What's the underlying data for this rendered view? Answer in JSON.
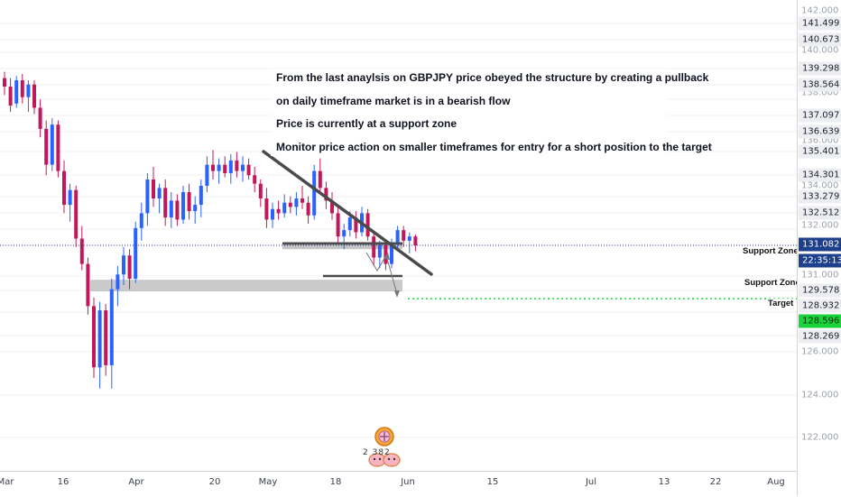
{
  "symbol": "GBPJPY",
  "timeframe": "daily",
  "colors": {
    "bull": "#2962ff",
    "bear": "#c2185b",
    "current_price_line": "#1e3f8a",
    "target_line": "#19d33b",
    "zone_fill": "#9e9e9e",
    "trendline": "#4a4a4a"
  },
  "annotation": {
    "lines": [
      "From the last anaylsis on GBPJPY price obeyed the structure by creating a pullback",
      "on daily timeframe market is in a bearish flow",
      "Price is currently at a support zone",
      "Monitor price action on smaller timeframes for entry for a short position to the target"
    ]
  },
  "zone_labels": {
    "support_1": "Support  Zone",
    "support_2": "Support Zone",
    "target": "Target"
  },
  "price_axis": {
    "ticks": [
      "142.000",
      "140.000",
      "138.000",
      "136.000",
      "134.000",
      "132.000",
      "131.000",
      "126.000",
      "124.000",
      "122.000"
    ],
    "labels": [
      {
        "text": "141.499",
        "kind": "normal"
      },
      {
        "text": "140.673",
        "kind": "normal"
      },
      {
        "text": "139.298",
        "kind": "normal"
      },
      {
        "text": "138.564",
        "kind": "normal"
      },
      {
        "text": "137.097",
        "kind": "normal"
      },
      {
        "text": "136.639",
        "kind": "normal"
      },
      {
        "text": "135.401",
        "kind": "normal"
      },
      {
        "text": "134.301",
        "kind": "normal"
      },
      {
        "text": "133.279",
        "kind": "normal"
      },
      {
        "text": "132.512",
        "kind": "normal"
      },
      {
        "text": "131.082",
        "kind": "current"
      },
      {
        "text": "22:35:13",
        "kind": "timer"
      },
      {
        "text": "129.578",
        "kind": "normal"
      },
      {
        "text": "128.932",
        "kind": "normal"
      },
      {
        "text": "128.596",
        "kind": "green"
      },
      {
        "text": "128.269",
        "kind": "normal"
      }
    ]
  },
  "time_axis": {
    "labels": [
      "Mar",
      "16",
      "Apr",
      "20",
      "May",
      "18",
      "Jun",
      "15",
      "Jul",
      "13",
      "22",
      "Aug"
    ]
  },
  "mascot": {
    "number": "2 382"
  },
  "chart_data": {
    "type": "candlestick",
    "symbol": "GBPJPY",
    "interval": "1D",
    "current_price": 131.082,
    "countdown": "22:35:13",
    "target_price": 128.596,
    "support_zone_1": [
      130.9,
      131.25
    ],
    "support_zone_2": 130.3,
    "target_zone": [
      128.9,
      129.45
    ],
    "candles": [
      {
        "o": 139.0,
        "h": 139.3,
        "l": 138.2,
        "c": 138.6
      },
      {
        "o": 138.6,
        "h": 139.0,
        "l": 137.4,
        "c": 137.7
      },
      {
        "o": 137.8,
        "h": 139.1,
        "l": 137.6,
        "c": 138.9
      },
      {
        "o": 138.9,
        "h": 139.2,
        "l": 137.8,
        "c": 138.1
      },
      {
        "o": 138.1,
        "h": 138.9,
        "l": 137.4,
        "c": 138.7
      },
      {
        "o": 138.7,
        "h": 138.9,
        "l": 137.3,
        "c": 137.6
      },
      {
        "o": 137.6,
        "h": 138.0,
        "l": 136.2,
        "c": 136.6
      },
      {
        "o": 136.6,
        "h": 137.0,
        "l": 134.4,
        "c": 134.9
      },
      {
        "o": 134.9,
        "h": 137.1,
        "l": 134.6,
        "c": 136.8
      },
      {
        "o": 136.8,
        "h": 137.0,
        "l": 134.3,
        "c": 134.6
      },
      {
        "o": 134.6,
        "h": 135.1,
        "l": 132.6,
        "c": 133.0
      },
      {
        "o": 133.0,
        "h": 134.0,
        "l": 132.2,
        "c": 133.7
      },
      {
        "o": 133.7,
        "h": 133.9,
        "l": 131.0,
        "c": 131.4
      },
      {
        "o": 131.4,
        "h": 132.0,
        "l": 129.9,
        "c": 130.2
      },
      {
        "o": 130.2,
        "h": 130.5,
        "l": 127.8,
        "c": 128.2
      },
      {
        "o": 128.2,
        "h": 128.6,
        "l": 124.8,
        "c": 125.3
      },
      {
        "o": 125.3,
        "h": 128.4,
        "l": 124.3,
        "c": 128.0
      },
      {
        "o": 128.0,
        "h": 128.3,
        "l": 124.9,
        "c": 125.4
      },
      {
        "o": 125.4,
        "h": 129.5,
        "l": 124.3,
        "c": 129.0
      },
      {
        "o": 129.0,
        "h": 130.1,
        "l": 128.2,
        "c": 129.7
      },
      {
        "o": 129.7,
        "h": 131.0,
        "l": 129.2,
        "c": 130.6
      },
      {
        "o": 130.6,
        "h": 130.9,
        "l": 129.0,
        "c": 129.5
      },
      {
        "o": 129.5,
        "h": 132.2,
        "l": 129.3,
        "c": 131.9
      },
      {
        "o": 131.9,
        "h": 133.1,
        "l": 131.3,
        "c": 132.6
      },
      {
        "o": 132.6,
        "h": 134.5,
        "l": 132.0,
        "c": 134.2
      },
      {
        "o": 134.2,
        "h": 134.8,
        "l": 132.9,
        "c": 133.3
      },
      {
        "o": 133.3,
        "h": 134.0,
        "l": 132.6,
        "c": 133.8
      },
      {
        "o": 133.8,
        "h": 134.2,
        "l": 132.0,
        "c": 132.4
      },
      {
        "o": 132.4,
        "h": 133.6,
        "l": 131.9,
        "c": 133.2
      },
      {
        "o": 133.2,
        "h": 133.5,
        "l": 132.0,
        "c": 132.3
      },
      {
        "o": 132.3,
        "h": 133.9,
        "l": 132.1,
        "c": 133.6
      },
      {
        "o": 133.6,
        "h": 134.0,
        "l": 132.3,
        "c": 132.7
      },
      {
        "o": 132.7,
        "h": 133.4,
        "l": 132.1,
        "c": 133.0
      },
      {
        "o": 133.0,
        "h": 134.2,
        "l": 132.4,
        "c": 133.9
      },
      {
        "o": 133.9,
        "h": 135.3,
        "l": 133.6,
        "c": 134.9
      },
      {
        "o": 134.9,
        "h": 135.6,
        "l": 134.2,
        "c": 134.6
      },
      {
        "o": 134.6,
        "h": 135.2,
        "l": 134.0,
        "c": 134.9
      },
      {
        "o": 134.9,
        "h": 135.3,
        "l": 134.3,
        "c": 134.5
      },
      {
        "o": 134.5,
        "h": 135.4,
        "l": 134.0,
        "c": 135.1
      },
      {
        "o": 135.1,
        "h": 135.5,
        "l": 134.3,
        "c": 134.6
      },
      {
        "o": 134.6,
        "h": 135.3,
        "l": 134.1,
        "c": 134.9
      },
      {
        "o": 134.9,
        "h": 135.2,
        "l": 134.2,
        "c": 134.4
      },
      {
        "o": 134.4,
        "h": 134.8,
        "l": 133.6,
        "c": 134.0
      },
      {
        "o": 134.0,
        "h": 134.2,
        "l": 132.9,
        "c": 133.3
      },
      {
        "o": 133.3,
        "h": 133.8,
        "l": 131.9,
        "c": 132.3
      },
      {
        "o": 132.3,
        "h": 133.1,
        "l": 131.9,
        "c": 132.8
      },
      {
        "o": 132.8,
        "h": 133.2,
        "l": 132.3,
        "c": 132.6
      },
      {
        "o": 132.6,
        "h": 133.5,
        "l": 132.4,
        "c": 133.1
      },
      {
        "o": 133.1,
        "h": 133.4,
        "l": 132.6,
        "c": 132.9
      },
      {
        "o": 132.9,
        "h": 133.6,
        "l": 132.5,
        "c": 133.3
      },
      {
        "o": 133.3,
        "h": 133.9,
        "l": 132.8,
        "c": 133.1
      },
      {
        "o": 133.1,
        "h": 133.4,
        "l": 132.1,
        "c": 132.5
      },
      {
        "o": 132.5,
        "h": 134.9,
        "l": 132.3,
        "c": 134.6
      },
      {
        "o": 134.6,
        "h": 135.2,
        "l": 133.5,
        "c": 133.8
      },
      {
        "o": 133.8,
        "h": 134.1,
        "l": 132.8,
        "c": 133.2
      },
      {
        "o": 133.2,
        "h": 133.6,
        "l": 132.3,
        "c": 132.6
      },
      {
        "o": 132.6,
        "h": 132.9,
        "l": 131.2,
        "c": 131.5
      },
      {
        "o": 131.5,
        "h": 132.1,
        "l": 130.9,
        "c": 131.8
      },
      {
        "o": 131.8,
        "h": 132.7,
        "l": 131.5,
        "c": 132.4
      },
      {
        "o": 132.4,
        "h": 132.7,
        "l": 131.4,
        "c": 131.7
      },
      {
        "o": 131.7,
        "h": 132.9,
        "l": 131.5,
        "c": 132.6
      },
      {
        "o": 132.6,
        "h": 132.8,
        "l": 131.3,
        "c": 131.5
      },
      {
        "o": 131.5,
        "h": 131.7,
        "l": 130.1,
        "c": 130.5
      },
      {
        "o": 130.5,
        "h": 131.3,
        "l": 130.0,
        "c": 131.1
      },
      {
        "o": 131.1,
        "h": 131.3,
        "l": 129.9,
        "c": 130.2
      },
      {
        "o": 130.2,
        "h": 131.4,
        "l": 130.0,
        "c": 131.2
      },
      {
        "o": 131.2,
        "h": 132.0,
        "l": 130.9,
        "c": 131.8
      },
      {
        "o": 131.8,
        "h": 132.0,
        "l": 131.0,
        "c": 131.3
      },
      {
        "o": 131.3,
        "h": 131.7,
        "l": 130.7,
        "c": 131.5
      },
      {
        "o": 131.5,
        "h": 131.6,
        "l": 130.8,
        "c": 131.08
      }
    ]
  }
}
